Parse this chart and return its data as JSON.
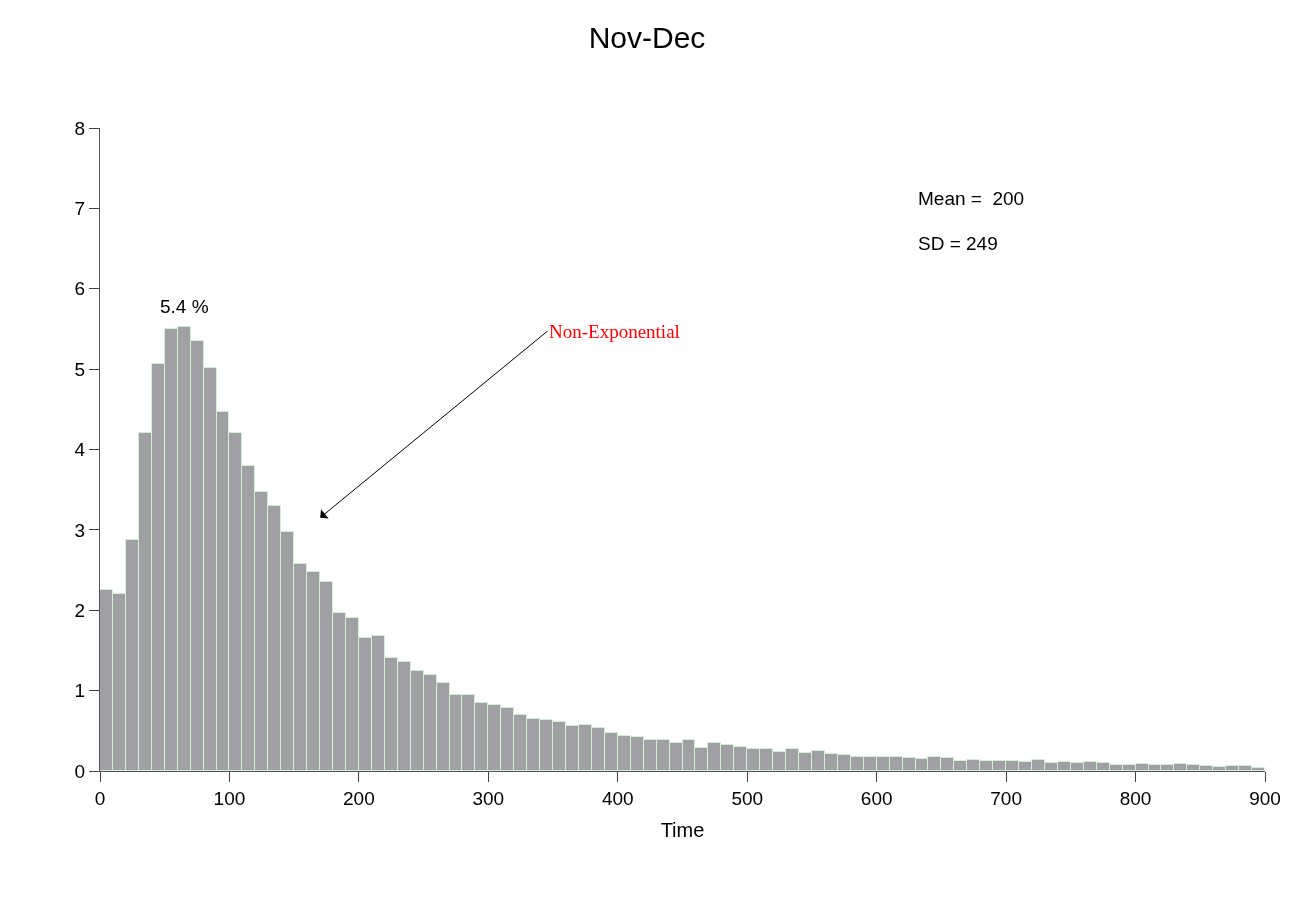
{
  "chart_data": {
    "type": "histogram",
    "title": "Nov-Dec",
    "xlabel": "Time",
    "bins": [
      0,
      10,
      20,
      30,
      40,
      50,
      60,
      70,
      80,
      90,
      100,
      110,
      120,
      130,
      140,
      150,
      160,
      170,
      180,
      190,
      200,
      210,
      220,
      230,
      240,
      250,
      260,
      270,
      280,
      290,
      300,
      310,
      320,
      330,
      340,
      350,
      360,
      370,
      380,
      390,
      400,
      410,
      420,
      430,
      440,
      450,
      460,
      470,
      480,
      490,
      500,
      510,
      520,
      530,
      540,
      550,
      560,
      570,
      580,
      590,
      600,
      610,
      620,
      630,
      640,
      650,
      660,
      670,
      680,
      690,
      700,
      710,
      720,
      730,
      740,
      750,
      760,
      770,
      780,
      790,
      800,
      810,
      820,
      830,
      840,
      850,
      860,
      870,
      880,
      890,
      900
    ],
    "values": [
      2.25,
      2.2,
      2.88,
      4.2,
      5.07,
      5.5,
      5.52,
      5.35,
      5.02,
      4.47,
      4.2,
      3.8,
      3.47,
      3.3,
      2.97,
      2.58,
      2.47,
      2.35,
      1.97,
      1.9,
      1.65,
      1.68,
      1.41,
      1.35,
      1.25,
      1.2,
      1.1,
      0.95,
      0.95,
      0.84,
      0.82,
      0.78,
      0.7,
      0.65,
      0.64,
      0.61,
      0.56,
      0.57,
      0.53,
      0.47,
      0.43,
      0.42,
      0.39,
      0.38,
      0.35,
      0.38,
      0.29,
      0.35,
      0.32,
      0.3,
      0.28,
      0.27,
      0.24,
      0.28,
      0.23,
      0.25,
      0.21,
      0.2,
      0.18,
      0.18,
      0.18,
      0.17,
      0.16,
      0.15,
      0.17,
      0.16,
      0.12,
      0.14,
      0.12,
      0.12,
      0.12,
      0.11,
      0.14,
      0.1,
      0.11,
      0.1,
      0.11,
      0.1,
      0.07,
      0.08,
      0.09,
      0.07,
      0.07,
      0.09,
      0.07,
      0.06,
      0.05,
      0.06,
      0.06,
      0.04
    ],
    "color": "#a0a0a4",
    "xlim": [
      0,
      900
    ],
    "xticks": [
      0,
      100,
      200,
      300,
      400,
      500,
      600,
      700,
      800,
      900
    ],
    "ylim": [
      0,
      8
    ],
    "yticks": [
      0,
      1,
      2,
      3,
      4,
      5,
      6,
      7,
      8
    ],
    "annotations": [
      {
        "text": "5.4 %",
        "x": 65,
        "y": 5.52
      },
      "Mean =  200",
      "SD = 249",
      "Non-Exponential"
    ]
  }
}
